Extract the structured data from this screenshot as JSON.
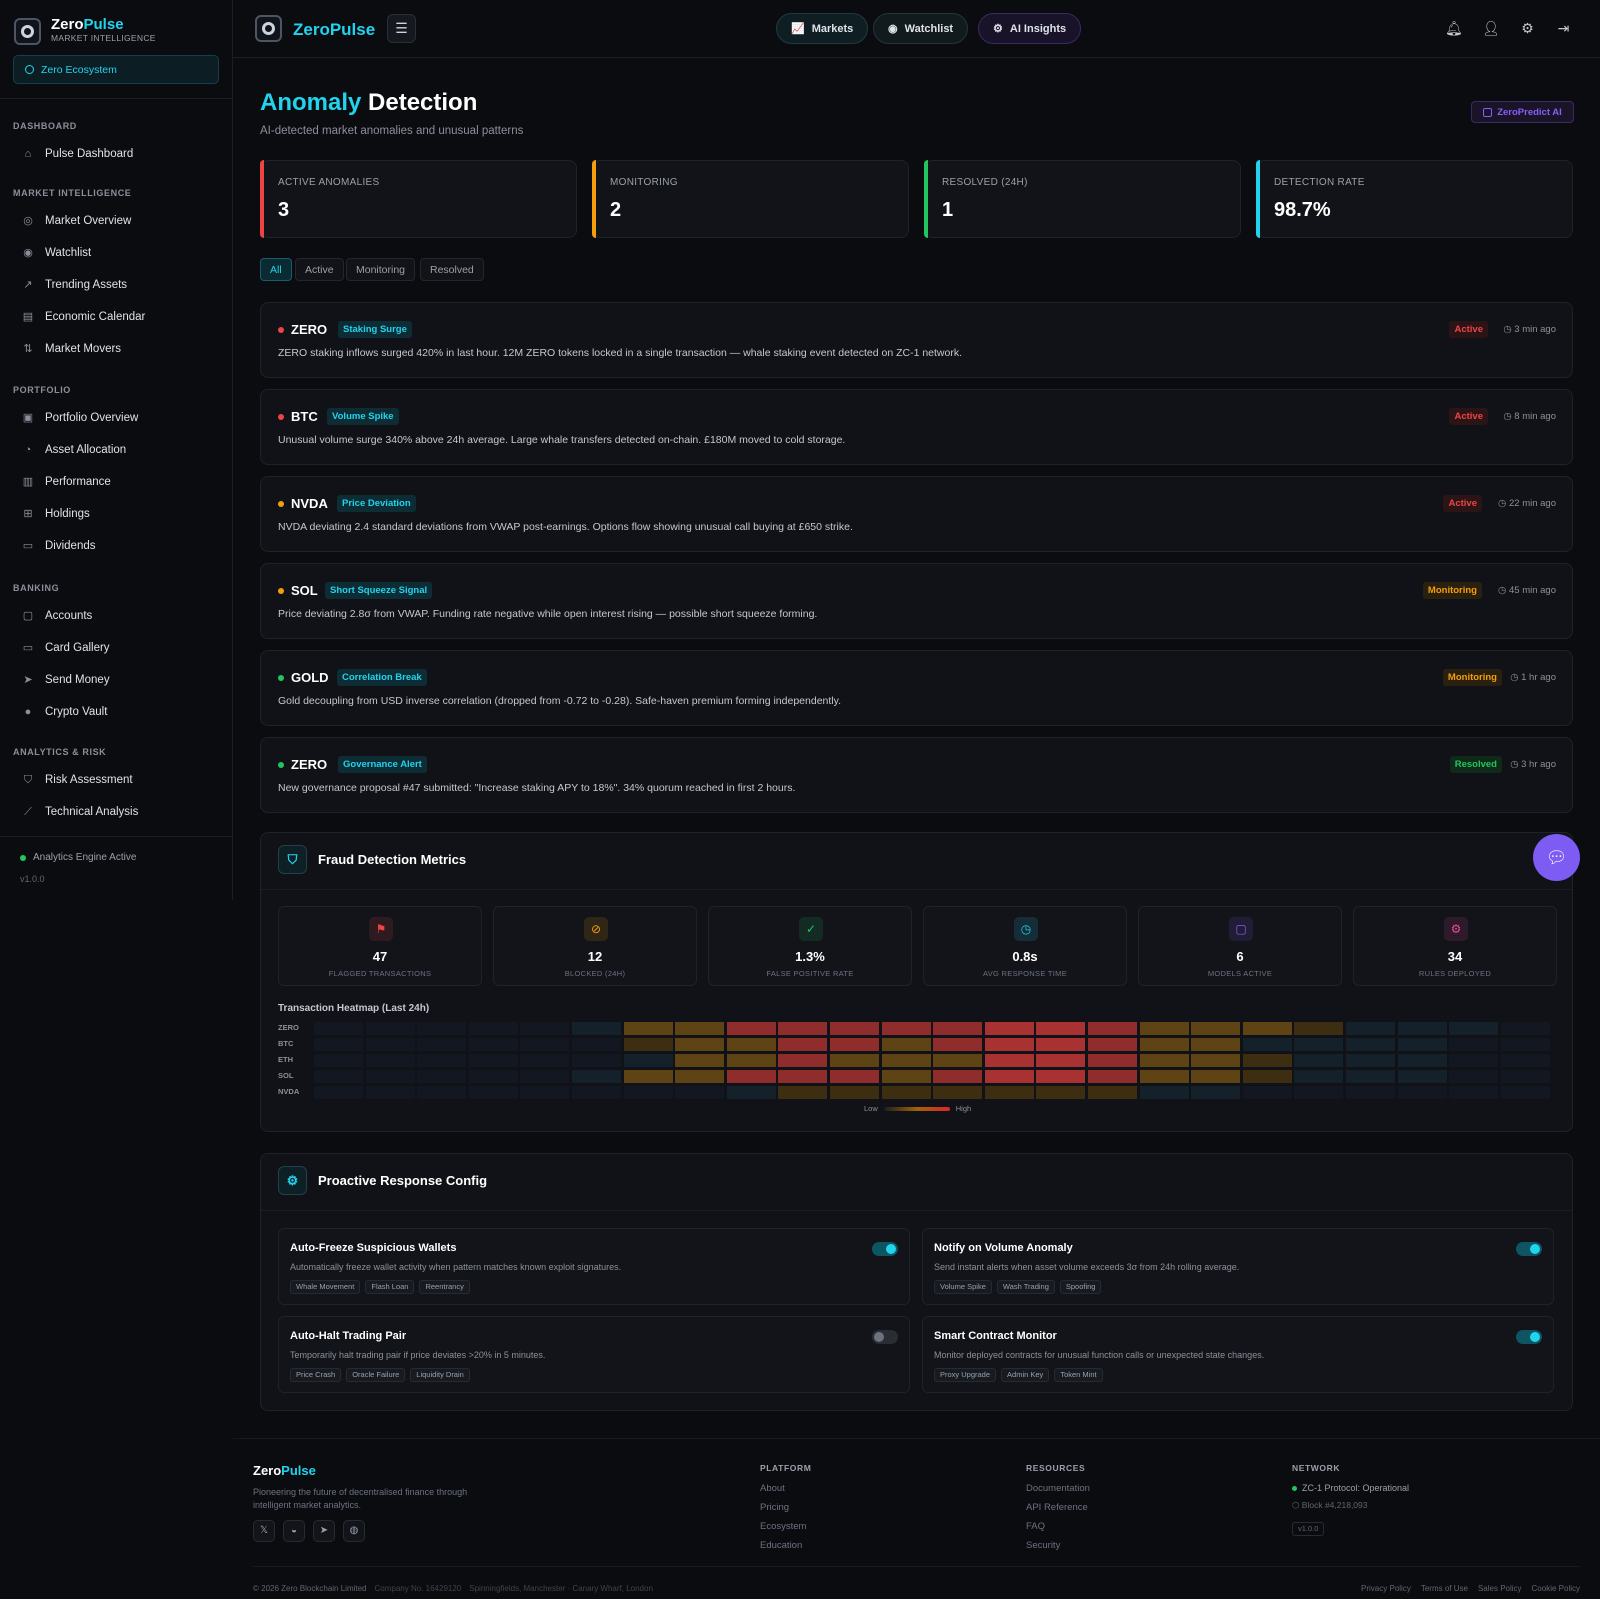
{
  "sidebar": {
    "brand_name_a": "Zero",
    "brand_name_b": "Pulse",
    "brand_sub": "MARKET INTELLIGENCE",
    "ecosystem": "Zero Ecosystem",
    "sections": [
      {
        "title": "DASHBOARD",
        "items": [
          "Pulse Dashboard"
        ]
      },
      {
        "title": "MARKET INTELLIGENCE",
        "items": [
          "Market Overview",
          "Watchlist",
          "Trending Assets",
          "Economic Calendar",
          "Market Movers"
        ]
      },
      {
        "title": "PORTFOLIO",
        "items": [
          "Portfolio Overview",
          "Asset Allocation",
          "Performance",
          "Holdings",
          "Dividends"
        ]
      },
      {
        "title": "BANKING",
        "items": [
          "Accounts",
          "Card Gallery",
          "Send Money",
          "Crypto Vault"
        ]
      },
      {
        "title": "ANALYTICS & RISK",
        "items": [
          "Risk Assessment",
          "Technical Analysis"
        ]
      }
    ],
    "engine_status": "Analytics Engine Active",
    "version": "v1.0.0"
  },
  "header": {
    "brand": "ZeroPulse",
    "menu_icon": "hamburger-icon",
    "nav": [
      {
        "label": "Markets",
        "icon": "chart-icon"
      },
      {
        "label": "Watchlist",
        "icon": "eye-icon"
      },
      {
        "label": "AI Insights",
        "icon": "chip-icon"
      }
    ],
    "icons": [
      "bell-icon",
      "user-icon",
      "gear-icon",
      "logout-icon"
    ]
  },
  "page": {
    "title_a": "Anomaly",
    "title_b": "Detection",
    "subtitle": "AI-detected market anomalies and unusual patterns",
    "badge": "ZeroPredict AI"
  },
  "stats": [
    {
      "label": "ACTIVE ANOMALIES",
      "value": "3",
      "color": "#ef4444"
    },
    {
      "label": "MONITORING",
      "value": "2",
      "color": "#f59e0b"
    },
    {
      "label": "RESOLVED (24H)",
      "value": "1",
      "color": "#22c55e"
    },
    {
      "label": "DETECTION RATE",
      "value": "98.7%",
      "color": "#22d3ee"
    }
  ],
  "filters": [
    "All",
    "Active",
    "Monitoring",
    "Resolved"
  ],
  "active_filter": "All",
  "anomalies": [
    {
      "symbol": "ZERO",
      "type": "Staking Surge",
      "desc": "ZERO staking inflows surged 420% in last hour. 12M ZERO tokens locked in a single transaction — whale staking event detected on ZC-1 network.",
      "status": "Active",
      "time": "3 min ago",
      "dot": "#ef4444"
    },
    {
      "symbol": "BTC",
      "type": "Volume Spike",
      "desc": "Unusual volume surge 340% above 24h average. Large whale transfers detected on-chain. £180M moved to cold storage.",
      "status": "Active",
      "time": "8 min ago",
      "dot": "#ef4444"
    },
    {
      "symbol": "NVDA",
      "type": "Price Deviation",
      "desc": "NVDA deviating 2.4 standard deviations from VWAP post-earnings. Options flow showing unusual call buying at £650 strike.",
      "status": "Active",
      "time": "22 min ago",
      "dot": "#f59e0b"
    },
    {
      "symbol": "SOL",
      "type": "Short Squeeze Signal",
      "desc": "Price deviating 2.8σ from VWAP. Funding rate negative while open interest rising — possible short squeeze forming.",
      "status": "Monitoring",
      "time": "45 min ago",
      "dot": "#f59e0b"
    },
    {
      "symbol": "GOLD",
      "type": "Correlation Break",
      "desc": "Gold decoupling from USD inverse correlation (dropped from -0.72 to -0.28). Safe-haven premium forming independently.",
      "status": "Monitoring",
      "time": "1 hr ago",
      "dot": "#22c55e"
    },
    {
      "symbol": "ZERO",
      "type": "Governance Alert",
      "desc": "New governance proposal #47 submitted: \"Increase staking APY to 18%\". 34% quorum reached in first 2 hours.",
      "status": "Resolved",
      "time": "3 hr ago",
      "dot": "#22c55e"
    }
  ],
  "fraud": {
    "title": "Fraud Detection Metrics",
    "metrics": [
      {
        "value": "47",
        "label": "FLAGGED TRANSACTIONS",
        "icon": "flag-icon",
        "color": "#ef4444"
      },
      {
        "value": "12",
        "label": "BLOCKED (24H)",
        "icon": "block-icon",
        "color": "#f59e0b"
      },
      {
        "value": "1.3%",
        "label": "FALSE POSITIVE RATE",
        "icon": "check-circle-icon",
        "color": "#22c55e"
      },
      {
        "value": "0.8s",
        "label": "AVG RESPONSE TIME",
        "icon": "stopwatch-icon",
        "color": "#22d3ee"
      },
      {
        "value": "6",
        "label": "MODELS ACTIVE",
        "icon": "chip-icon",
        "color": "#8b5cf6"
      },
      {
        "value": "34",
        "label": "RULES DEPLOYED",
        "icon": "gear-icon",
        "color": "#ec4899"
      }
    ],
    "heatmap_title": "Transaction Heatmap (Last 24h)",
    "legend_low": "Low",
    "legend_high": "High",
    "heatmap_rows": [
      "ZERO",
      "BTC",
      "ETH",
      "SOL",
      "NVDA"
    ],
    "heatmap_levels": [
      [
        0,
        0,
        0,
        0,
        0,
        1,
        3,
        3,
        4,
        4,
        4,
        4,
        4,
        4,
        4,
        4,
        3,
        3,
        3,
        2,
        1,
        1,
        1,
        0
      ],
      [
        0,
        0,
        0,
        0,
        0,
        0,
        2,
        3,
        3,
        4,
        4,
        3,
        4,
        4,
        4,
        4,
        3,
        3,
        1,
        1,
        1,
        1,
        0,
        0
      ],
      [
        0,
        0,
        0,
        0,
        0,
        0,
        1,
        3,
        3,
        4,
        3,
        3,
        3,
        4,
        4,
        4,
        3,
        3,
        2,
        1,
        1,
        1,
        0,
        0
      ],
      [
        0,
        0,
        0,
        0,
        0,
        1,
        3,
        3,
        4,
        4,
        4,
        3,
        4,
        4,
        4,
        4,
        3,
        3,
        2,
        1,
        1,
        1,
        0,
        0
      ],
      [
        0,
        0,
        0,
        0,
        0,
        0,
        0,
        0,
        1,
        2,
        2,
        2,
        2,
        2,
        2,
        2,
        1,
        1,
        0,
        0,
        0,
        0,
        0,
        0
      ]
    ]
  },
  "config": {
    "title": "Proactive Response Config",
    "items": [
      {
        "title": "Auto-Freeze Suspicious Wallets",
        "desc": "Automatically freeze wallet activity when pattern matches known exploit signatures.",
        "tags": [
          "Whale Movement",
          "Flash Loan",
          "Reentrancy"
        ],
        "enabled": true
      },
      {
        "title": "Notify on Volume Anomaly",
        "desc": "Send instant alerts when asset volume exceeds 3σ from 24h rolling average.",
        "tags": [
          "Volume Spike",
          "Wash Trading",
          "Spoofing"
        ],
        "enabled": true
      },
      {
        "title": "Auto-Halt Trading Pair",
        "desc": "Temporarily halt trading pair if price deviates >20% in 5 minutes.",
        "tags": [
          "Price Crash",
          "Oracle Failure",
          "Liquidity Drain"
        ],
        "enabled": false
      },
      {
        "title": "Smart Contract Monitor",
        "desc": "Monitor deployed contracts for unusual function calls or unexpected state changes.",
        "tags": [
          "Proxy Upgrade",
          "Admin Key",
          "Token Mint"
        ],
        "enabled": true
      }
    ]
  },
  "footer": {
    "brand_a": "Zero",
    "brand_b": "Pulse",
    "desc": "Pioneering the future of decentralised finance through intelligent market analytics.",
    "social": [
      "x-icon",
      "discord-icon",
      "telegram-icon",
      "github-icon"
    ],
    "platform_title": "PLATFORM",
    "platform": [
      "About",
      "Pricing",
      "Ecosystem",
      "Education"
    ],
    "resources_title": "RESOURCES",
    "resources": [
      "Documentation",
      "API Reference",
      "FAQ",
      "Security"
    ],
    "network_title": "NETWORK",
    "network_status": "ZC-1 Protocol: Operational",
    "block": "Block #4,218,093",
    "version": "v1.0.0",
    "copyright": "© 2026 Zero Blockchain Limited",
    "company": "Company No. 16429120",
    "address": "Spinningfields, Manchester · Canary Wharf, London",
    "legal": [
      "Privacy Policy",
      "Terms of Use",
      "Sales Policy",
      "Cookie Policy"
    ]
  }
}
